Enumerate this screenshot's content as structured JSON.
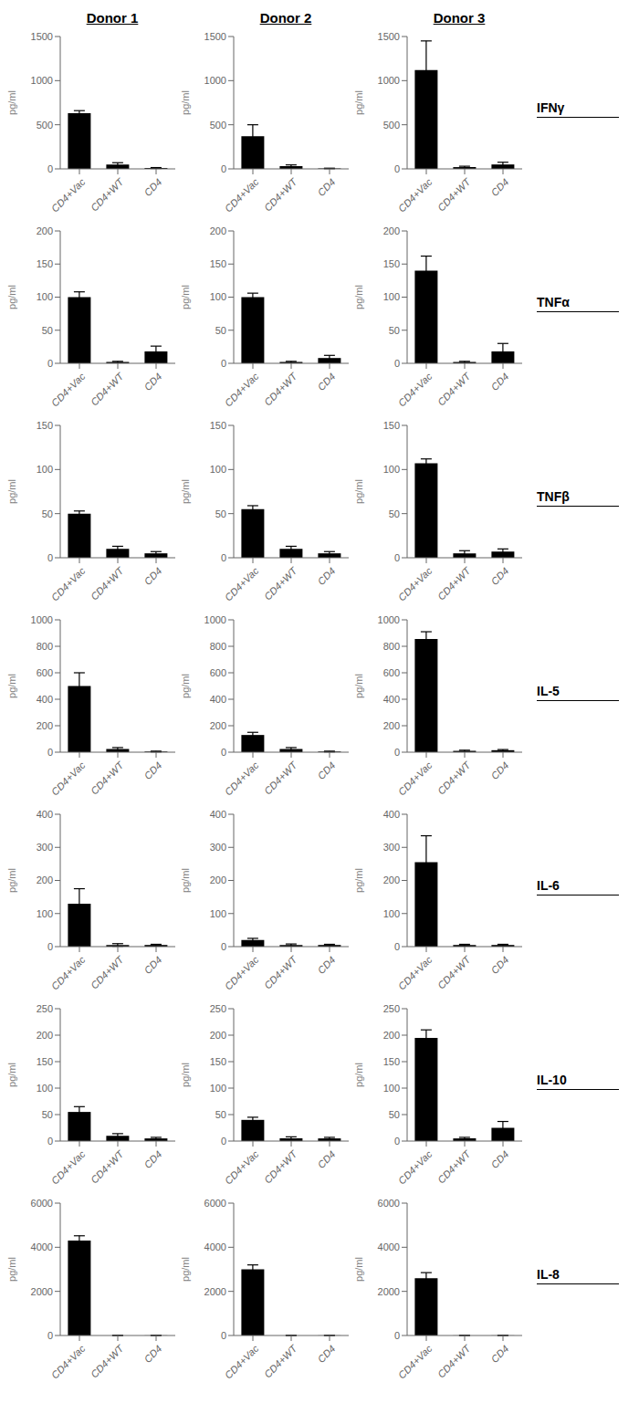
{
  "chart_data": [
    {
      "type": "bar",
      "title": "Donor 1",
      "ylabel": "pg/ml",
      "categories": [
        "CD4+Vac",
        "CD4+WT",
        "CD4"
      ],
      "values": [
        630,
        50,
        10
      ],
      "errors": [
        30,
        20,
        5
      ],
      "color": "#000000",
      "ylim": [
        0,
        1500
      ],
      "yticks": [
        0,
        500,
        1000,
        1500
      ],
      "grid": false
    },
    {
      "type": "bar",
      "title": "Donor 2",
      "ylabel": "pg/ml",
      "categories": [
        "CD4+Vac",
        "CD4+WT",
        "CD4"
      ],
      "values": [
        370,
        30,
        5
      ],
      "errors": [
        130,
        15,
        3
      ],
      "color": "#000000",
      "ylim": [
        0,
        1500
      ],
      "yticks": [
        0,
        500,
        1000,
        1500
      ],
      "grid": false
    },
    {
      "type": "bar",
      "title": "Donor 3",
      "ylabel": "pg/ml",
      "annotation": "IFNγ",
      "categories": [
        "CD4+Vac",
        "CD4+WT",
        "CD4"
      ],
      "values": [
        1120,
        20,
        50
      ],
      "errors": [
        330,
        10,
        25
      ],
      "color": "#000000",
      "ylim": [
        0,
        1500
      ],
      "yticks": [
        0,
        500,
        1000,
        1500
      ],
      "grid": false
    },
    {
      "type": "bar",
      "ylabel": "pg/ml",
      "categories": [
        "CD4+Vac",
        "CD4+WT",
        "CD4"
      ],
      "values": [
        100,
        2,
        18
      ],
      "errors": [
        8,
        1,
        8
      ],
      "color": "#000000",
      "ylim": [
        0,
        200
      ],
      "yticks": [
        0,
        50,
        100,
        150,
        200
      ],
      "grid": false
    },
    {
      "type": "bar",
      "ylabel": "pg/ml",
      "categories": [
        "CD4+Vac",
        "CD4+WT",
        "CD4"
      ],
      "values": [
        100,
        2,
        8
      ],
      "errors": [
        6,
        1,
        4
      ],
      "color": "#000000",
      "ylim": [
        0,
        200
      ],
      "yticks": [
        0,
        50,
        100,
        150,
        200
      ],
      "grid": false
    },
    {
      "type": "bar",
      "ylabel": "pg/ml",
      "annotation": "TNFα",
      "categories": [
        "CD4+Vac",
        "CD4+WT",
        "CD4"
      ],
      "values": [
        140,
        2,
        18
      ],
      "errors": [
        22,
        1,
        12
      ],
      "color": "#000000",
      "ylim": [
        0,
        200
      ],
      "yticks": [
        0,
        50,
        100,
        150,
        200
      ],
      "grid": false
    },
    {
      "type": "bar",
      "ylabel": "pg/ml",
      "categories": [
        "CD4+Vac",
        "CD4+WT",
        "CD4"
      ],
      "values": [
        50,
        10,
        5
      ],
      "errors": [
        3,
        3,
        2
      ],
      "color": "#000000",
      "ylim": [
        0,
        150
      ],
      "yticks": [
        0,
        50,
        100,
        150
      ],
      "grid": false
    },
    {
      "type": "bar",
      "ylabel": "pg/ml",
      "categories": [
        "CD4+Vac",
        "CD4+WT",
        "CD4"
      ],
      "values": [
        55,
        10,
        5
      ],
      "errors": [
        4,
        3,
        2
      ],
      "color": "#000000",
      "ylim": [
        0,
        150
      ],
      "yticks": [
        0,
        50,
        100,
        150
      ],
      "grid": false
    },
    {
      "type": "bar",
      "ylabel": "pg/ml",
      "annotation": "TNFβ",
      "categories": [
        "CD4+Vac",
        "CD4+WT",
        "CD4"
      ],
      "values": [
        107,
        5,
        7
      ],
      "errors": [
        5,
        3,
        3
      ],
      "color": "#000000",
      "ylim": [
        0,
        150
      ],
      "yticks": [
        0,
        50,
        100,
        150
      ],
      "grid": false
    },
    {
      "type": "bar",
      "ylabel": "pg/ml",
      "categories": [
        "CD4+Vac",
        "CD4+WT",
        "CD4"
      ],
      "values": [
        500,
        25,
        5
      ],
      "errors": [
        100,
        10,
        3
      ],
      "color": "#000000",
      "ylim": [
        0,
        1000
      ],
      "yticks": [
        0,
        200,
        400,
        600,
        800,
        1000
      ],
      "grid": false
    },
    {
      "type": "bar",
      "ylabel": "pg/ml",
      "categories": [
        "CD4+Vac",
        "CD4+WT",
        "CD4"
      ],
      "values": [
        130,
        25,
        5
      ],
      "errors": [
        20,
        10,
        3
      ],
      "color": "#000000",
      "ylim": [
        0,
        1000
      ],
      "yticks": [
        0,
        200,
        400,
        600,
        800,
        1000
      ],
      "grid": false
    },
    {
      "type": "bar",
      "ylabel": "pg/ml",
      "annotation": "IL-5",
      "categories": [
        "CD4+Vac",
        "CD4+WT",
        "CD4"
      ],
      "values": [
        855,
        10,
        15
      ],
      "errors": [
        55,
        5,
        5
      ],
      "color": "#000000",
      "ylim": [
        0,
        1000
      ],
      "yticks": [
        0,
        200,
        400,
        600,
        800,
        1000
      ],
      "grid": false
    },
    {
      "type": "bar",
      "ylabel": "pg/ml",
      "categories": [
        "CD4+Vac",
        "CD4+WT",
        "CD4"
      ],
      "values": [
        130,
        5,
        5
      ],
      "errors": [
        45,
        4,
        2
      ],
      "color": "#000000",
      "ylim": [
        0,
        400
      ],
      "yticks": [
        0,
        100,
        200,
        300,
        400
      ],
      "grid": false
    },
    {
      "type": "bar",
      "ylabel": "pg/ml",
      "categories": [
        "CD4+Vac",
        "CD4+WT",
        "CD4"
      ],
      "values": [
        20,
        5,
        5
      ],
      "errors": [
        5,
        3,
        2
      ],
      "color": "#000000",
      "ylim": [
        0,
        400
      ],
      "yticks": [
        0,
        100,
        200,
        300,
        400
      ],
      "grid": false
    },
    {
      "type": "bar",
      "ylabel": "pg/ml",
      "annotation": "IL-6",
      "categories": [
        "CD4+Vac",
        "CD4+WT",
        "CD4"
      ],
      "values": [
        255,
        5,
        5
      ],
      "errors": [
        80,
        2,
        2
      ],
      "color": "#000000",
      "ylim": [
        0,
        400
      ],
      "yticks": [
        0,
        100,
        200,
        300,
        400
      ],
      "grid": false
    },
    {
      "type": "bar",
      "ylabel": "pg/ml",
      "categories": [
        "CD4+Vac",
        "CD4+WT",
        "CD4"
      ],
      "values": [
        55,
        10,
        5
      ],
      "errors": [
        10,
        4,
        2
      ],
      "color": "#000000",
      "ylim": [
        0,
        250
      ],
      "yticks": [
        0,
        50,
        100,
        150,
        200,
        250
      ],
      "grid": false
    },
    {
      "type": "bar",
      "ylabel": "pg/ml",
      "categories": [
        "CD4+Vac",
        "CD4+WT",
        "CD4"
      ],
      "values": [
        40,
        5,
        5
      ],
      "errors": [
        5,
        3,
        2
      ],
      "color": "#000000",
      "ylim": [
        0,
        250
      ],
      "yticks": [
        0,
        50,
        100,
        150,
        200,
        250
      ],
      "grid": false
    },
    {
      "type": "bar",
      "ylabel": "pg/ml",
      "annotation": "IL-10",
      "categories": [
        "CD4+Vac",
        "CD4+WT",
        "CD4"
      ],
      "values": [
        195,
        5,
        25
      ],
      "errors": [
        15,
        2,
        12
      ],
      "color": "#000000",
      "ylim": [
        0,
        250
      ],
      "yticks": [
        0,
        50,
        100,
        150,
        200,
        250
      ],
      "grid": false
    },
    {
      "type": "bar",
      "ylabel": "pg/ml",
      "categories": [
        "CD4+Vac",
        "CD4+WT",
        "CD4"
      ],
      "values": [
        4300,
        5,
        5
      ],
      "errors": [
        220,
        5,
        3
      ],
      "color": "#000000",
      "ylim": [
        0,
        6000
      ],
      "yticks": [
        0,
        2000,
        4000,
        6000
      ],
      "grid": false
    },
    {
      "type": "bar",
      "ylabel": "pg/ml",
      "categories": [
        "CD4+Vac",
        "CD4+WT",
        "CD4"
      ],
      "values": [
        3000,
        5,
        5
      ],
      "errors": [
        200,
        5,
        3
      ],
      "color": "#000000",
      "ylim": [
        0,
        6000
      ],
      "yticks": [
        0,
        2000,
        4000,
        6000
      ],
      "grid": false
    },
    {
      "type": "bar",
      "ylabel": "pg/ml",
      "annotation": "IL-8",
      "categories": [
        "CD4+Vac",
        "CD4+WT",
        "CD4"
      ],
      "values": [
        2600,
        5,
        5
      ],
      "errors": [
        250,
        5,
        3
      ],
      "color": "#000000",
      "ylim": [
        0,
        6000
      ],
      "yticks": [
        0,
        2000,
        4000,
        6000
      ],
      "grid": false
    }
  ]
}
